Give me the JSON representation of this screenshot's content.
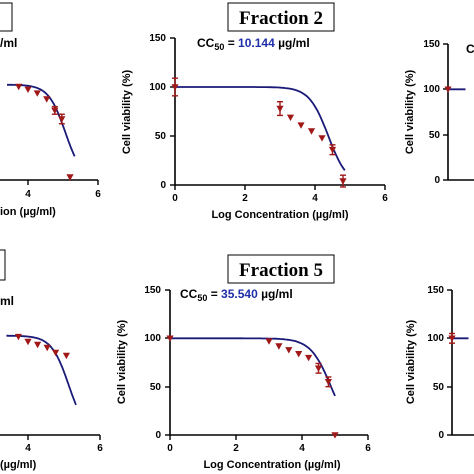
{
  "chart_data": [
    {
      "type": "scatter",
      "title": "Fraction 2",
      "cc50_label": "CC",
      "cc50_sub": "50",
      "cc50_eq": " = ",
      "cc50_value": "10.144",
      "cc50_unit": " µg/ml",
      "xlabel": "Log Concentration (µg/ml)",
      "ylabel": "Cell viability (%)",
      "xlim": [
        0,
        6
      ],
      "ylim": [
        0,
        150
      ],
      "xticks": [
        "0",
        "2",
        "4",
        "6"
      ],
      "yticks": [
        "0",
        "50",
        "100",
        "150"
      ],
      "points": [
        {
          "x": 0,
          "y": 100,
          "err": 9
        },
        {
          "x": 3.0,
          "y": 78,
          "err": 7
        },
        {
          "x": 3.3,
          "y": 69,
          "err": 0
        },
        {
          "x": 3.6,
          "y": 61,
          "err": 0
        },
        {
          "x": 3.9,
          "y": 55,
          "err": 0
        },
        {
          "x": 4.2,
          "y": 48,
          "err": 0
        },
        {
          "x": 4.5,
          "y": 36,
          "err": 5
        },
        {
          "x": 4.8,
          "y": 4,
          "err": 6
        }
      ],
      "fit": {
        "top": 100,
        "bottom": 0,
        "logEC50": 4.38,
        "hill": -1.6,
        "xmin": 0,
        "xmax": 4.85
      }
    },
    {
      "type": "scatter",
      "title": "Fraction 5",
      "cc50_label": "CC",
      "cc50_sub": "50",
      "cc50_eq": " = ",
      "cc50_value": "35.540",
      "cc50_unit": " µg/ml",
      "xlabel": "Log Concentration (µg/ml)",
      "ylabel": "Cell viability (%)",
      "xlim": [
        0,
        6
      ],
      "ylim": [
        0,
        150
      ],
      "xticks": [
        "0",
        "2",
        "4",
        "6"
      ],
      "yticks": [
        "0",
        "50",
        "100",
        "150"
      ],
      "points": [
        {
          "x": 0,
          "y": 100,
          "err": 0
        },
        {
          "x": 3.0,
          "y": 97,
          "err": 0
        },
        {
          "x": 3.3,
          "y": 92,
          "err": 0
        },
        {
          "x": 3.6,
          "y": 88,
          "err": 0
        },
        {
          "x": 3.9,
          "y": 84,
          "err": 0
        },
        {
          "x": 4.2,
          "y": 80,
          "err": 0
        },
        {
          "x": 4.5,
          "y": 69,
          "err": 5
        },
        {
          "x": 4.8,
          "y": 55,
          "err": 5
        },
        {
          "x": 5.0,
          "y": 0,
          "err": 0
        }
      ],
      "fit": {
        "top": 100,
        "bottom": 0,
        "logEC50": 4.88,
        "hill": -1.4,
        "xmin": 0,
        "xmax": 5.0
      }
    },
    {
      "type": "scatter",
      "title": "",
      "cc50_unit": "/ml",
      "xlabel": "ion (µg/ml)",
      "xticks": [
        "4",
        "6"
      ],
      "points": [
        {
          "x": 2.6,
          "y": 98,
          "err": 0
        },
        {
          "x": 3.0,
          "y": 95,
          "err": 0
        },
        {
          "x": 3.4,
          "y": 91,
          "err": 0
        },
        {
          "x": 3.8,
          "y": 85,
          "err": 0
        },
        {
          "x": 4.15,
          "y": 73,
          "err": 4
        },
        {
          "x": 4.45,
          "y": 64,
          "err": 5
        },
        {
          "x": 4.8,
          "y": 3,
          "err": 0
        }
      ],
      "fit": {
        "top": 100,
        "bottom": 0,
        "logEC50": 4.6,
        "hill": -1.2,
        "xmin": 2.1,
        "xmax": 5.0
      }
    },
    {
      "type": "scatter",
      "title": "",
      "cc50_unit": "ml",
      "xlabel": "(µg/ml)",
      "xticks": [
        "4",
        "6"
      ],
      "points": [
        {
          "x": 2.6,
          "y": 99,
          "err": 0
        },
        {
          "x": 3.0,
          "y": 94,
          "err": 0
        },
        {
          "x": 3.4,
          "y": 91,
          "err": 0
        },
        {
          "x": 3.8,
          "y": 88,
          "err": 0
        },
        {
          "x": 4.15,
          "y": 83,
          "err": 0
        },
        {
          "x": 4.6,
          "y": 80,
          "err": 0
        }
      ],
      "fit": {
        "top": 100,
        "bottom": 0,
        "logEC50": 4.7,
        "hill": -1.2,
        "xmin": 2.1,
        "xmax": 5.0
      }
    },
    {
      "type": "scatter",
      "title": "",
      "cc50_label": "C",
      "ylabel": "Cell viability (%)",
      "yticks": [
        "0",
        "50",
        "100",
        "150"
      ],
      "points": [
        {
          "x": 0,
          "y": 100,
          "err": 0
        }
      ],
      "fit": {
        "top": 100,
        "bottom": 0,
        "logEC50": 8,
        "hill": -1.6,
        "xmin": 0,
        "xmax": 0.5
      }
    },
    {
      "type": "scatter",
      "title": "",
      "ylabel": "Cell viability (%)",
      "yticks": [
        "0",
        "50",
        "100",
        "150"
      ],
      "points": [
        {
          "x": 0,
          "y": 100,
          "err": 5
        }
      ],
      "fit": {
        "top": 100,
        "bottom": 0,
        "logEC50": 8,
        "hill": -1.6,
        "xmin": 0,
        "xmax": 0.5
      }
    }
  ]
}
